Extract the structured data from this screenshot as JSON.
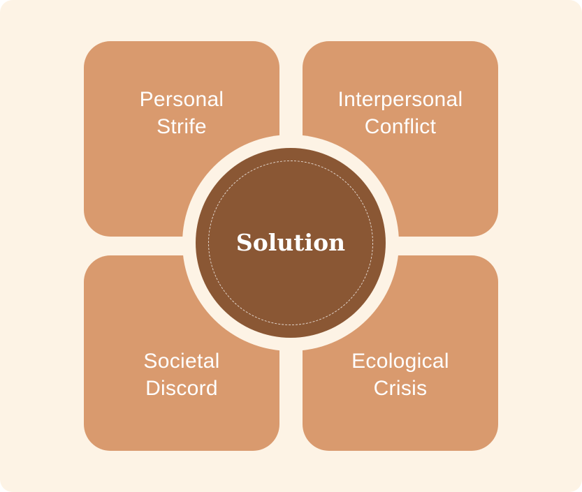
{
  "colors": {
    "background": "#fdf3e5",
    "tile": "#d99a6e",
    "center": "#8a5734",
    "text": "#ffffff"
  },
  "tiles": {
    "top_left": {
      "line1": "Personal",
      "line2": "Strife"
    },
    "top_right": {
      "line1": "Interpersonal",
      "line2": "Conflict"
    },
    "bottom_left": {
      "line1": "Societal",
      "line2": "Discord"
    },
    "bottom_right": {
      "line1": "Ecological",
      "line2": "Crisis"
    }
  },
  "center": {
    "label": "Solution"
  }
}
